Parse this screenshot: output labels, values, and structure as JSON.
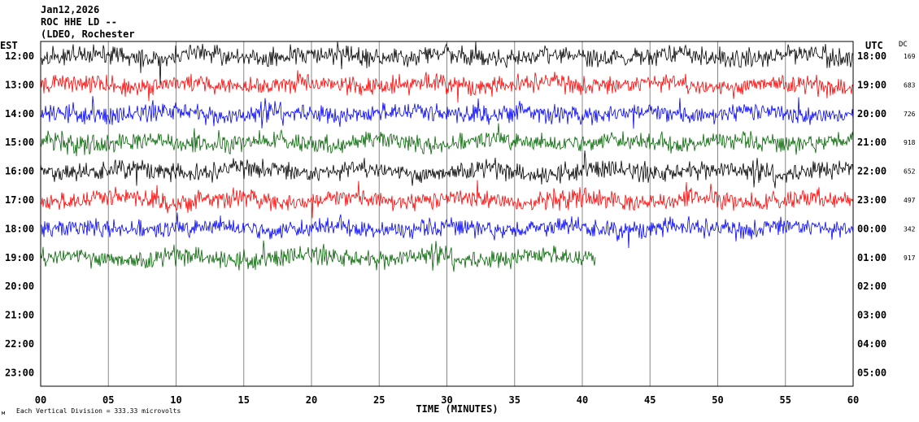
{
  "header": {
    "date": "Jan12,2026",
    "station": "ROC HHE LD --",
    "network": "(LDEO, Rochester"
  },
  "labels": {
    "left_zone": "EST",
    "right_zone": "UTC",
    "dc": "DC",
    "xlabel": "TIME (MINUTES)",
    "scale_note": "Each Vertical Division =  333.33 microvolts"
  },
  "chart_data": {
    "type": "line",
    "title": "",
    "xlabel": "TIME (MINUTES)",
    "xlim": [
      0,
      60
    ],
    "x_ticks": [
      "00",
      "05",
      "10",
      "15",
      "20",
      "25",
      "30",
      "35",
      "40",
      "45",
      "50",
      "55",
      "60"
    ],
    "rows": [
      {
        "est": "12:00",
        "utc": "18:00",
        "dc": "169",
        "color": "#000000",
        "end_minute": 60
      },
      {
        "est": "13:00",
        "utc": "19:00",
        "dc": "683",
        "color": "#ff0000",
        "end_minute": 60
      },
      {
        "est": "14:00",
        "utc": "20:00",
        "dc": "726",
        "color": "#0000ff",
        "end_minute": 60
      },
      {
        "est": "15:00",
        "utc": "21:00",
        "dc": "918",
        "color": "#006600",
        "end_minute": 60
      },
      {
        "est": "16:00",
        "utc": "22:00",
        "dc": "652",
        "color": "#000000",
        "end_minute": 60
      },
      {
        "est": "17:00",
        "utc": "23:00",
        "dc": "497",
        "color": "#ff0000",
        "end_minute": 60
      },
      {
        "est": "18:00",
        "utc": "00:00",
        "dc": "342",
        "color": "#0000ff",
        "end_minute": 60
      },
      {
        "est": "19:00",
        "utc": "01:00",
        "dc": "917",
        "color": "#006600",
        "end_minute": 41
      },
      {
        "est": "20:00",
        "utc": "02:00",
        "dc": "",
        "color": "#000000",
        "end_minute": 0
      },
      {
        "est": "21:00",
        "utc": "03:00",
        "dc": "",
        "color": "#ff0000",
        "end_minute": 0
      },
      {
        "est": "22:00",
        "utc": "04:00",
        "dc": "",
        "color": "#0000ff",
        "end_minute": 0
      },
      {
        "est": "23:00",
        "utc": "05:00",
        "dc": "",
        "color": "#006600",
        "end_minute": 0
      }
    ],
    "grid": true
  }
}
